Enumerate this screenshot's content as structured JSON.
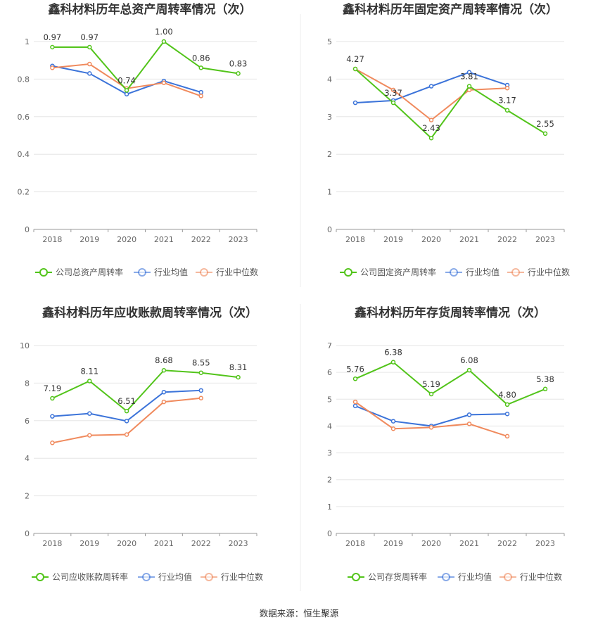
{
  "source": "数据来源：恒生聚源",
  "colors": {
    "company": "#52c41a",
    "avg": "#3b73d9",
    "median": "#f08a5d"
  },
  "chart_data": [
    {
      "type": "line",
      "title": "鑫科材料历年总资产周转率情况（次）",
      "categories": [
        "2018",
        "2019",
        "2020",
        "2021",
        "2022",
        "2023"
      ],
      "ylim": [
        0,
        1
      ],
      "yticks": [
        "0",
        "0.2",
        "0.4",
        "0.6",
        "0.8",
        "1"
      ],
      "series": [
        {
          "name": "公司总资产周转率",
          "values": [
            0.97,
            0.97,
            0.74,
            1.0,
            0.86,
            0.83
          ],
          "labels": [
            "0.97",
            "0.97",
            "0.74",
            "1.00",
            "0.86",
            "0.83"
          ]
        },
        {
          "name": "行业均值",
          "values": [
            0.87,
            0.83,
            0.72,
            0.79,
            0.73,
            null
          ]
        },
        {
          "name": "行业中位数",
          "values": [
            0.86,
            0.88,
            0.75,
            0.78,
            0.71,
            null
          ]
        }
      ]
    },
    {
      "type": "line",
      "title": "鑫科材料历年固定资产周转率情况（次）",
      "categories": [
        "2018",
        "2019",
        "2020",
        "2021",
        "2022",
        "2023"
      ],
      "ylim": [
        0,
        5
      ],
      "yticks": [
        "0",
        "1",
        "2",
        "3",
        "4",
        "5"
      ],
      "series": [
        {
          "name": "公司固定资产周转率",
          "values": [
            4.27,
            3.37,
            2.43,
            3.81,
            3.17,
            2.55
          ],
          "labels": [
            "4.27",
            "3.37",
            "2.43",
            "3.81",
            "3.17",
            "2.55"
          ]
        },
        {
          "name": "行业均值",
          "values": [
            3.37,
            3.43,
            3.81,
            4.18,
            3.84,
            null
          ]
        },
        {
          "name": "行业中位数",
          "values": [
            4.27,
            3.71,
            2.91,
            3.71,
            3.76,
            null
          ]
        }
      ]
    },
    {
      "type": "line",
      "title": "鑫科材料历年应收账款周转率情况（次）",
      "categories": [
        "2018",
        "2019",
        "2020",
        "2021",
        "2022",
        "2023"
      ],
      "ylim": [
        0,
        10
      ],
      "yticks": [
        "0",
        "2",
        "4",
        "6",
        "8",
        "10"
      ],
      "series": [
        {
          "name": "公司应收账款周转率",
          "values": [
            7.19,
            8.11,
            6.51,
            8.68,
            8.55,
            8.31
          ],
          "labels": [
            "7.19",
            "8.11",
            "6.51",
            "8.68",
            "8.55",
            "8.31"
          ]
        },
        {
          "name": "行业均值",
          "values": [
            6.23,
            6.38,
            5.98,
            7.52,
            7.61,
            null
          ]
        },
        {
          "name": "行业中位数",
          "values": [
            4.82,
            5.22,
            5.26,
            7.0,
            7.2,
            null
          ]
        }
      ]
    },
    {
      "type": "line",
      "title": "鑫科材料历年存货周转率情况（次）",
      "categories": [
        "2018",
        "2019",
        "2020",
        "2021",
        "2022",
        "2023"
      ],
      "ylim": [
        0,
        7
      ],
      "yticks": [
        "0",
        "1",
        "2",
        "3",
        "4",
        "5",
        "6",
        "7"
      ],
      "series": [
        {
          "name": "公司存货周转率",
          "values": [
            5.76,
            6.38,
            5.19,
            6.08,
            4.8,
            5.38
          ],
          "labels": [
            "5.76",
            "6.38",
            "5.19",
            "6.08",
            "4.80",
            "5.38"
          ]
        },
        {
          "name": "行业均值",
          "values": [
            4.75,
            4.18,
            4.0,
            4.42,
            4.45,
            null
          ]
        },
        {
          "name": "行业中位数",
          "values": [
            4.9,
            3.9,
            3.95,
            4.08,
            3.62,
            null
          ]
        }
      ]
    }
  ]
}
